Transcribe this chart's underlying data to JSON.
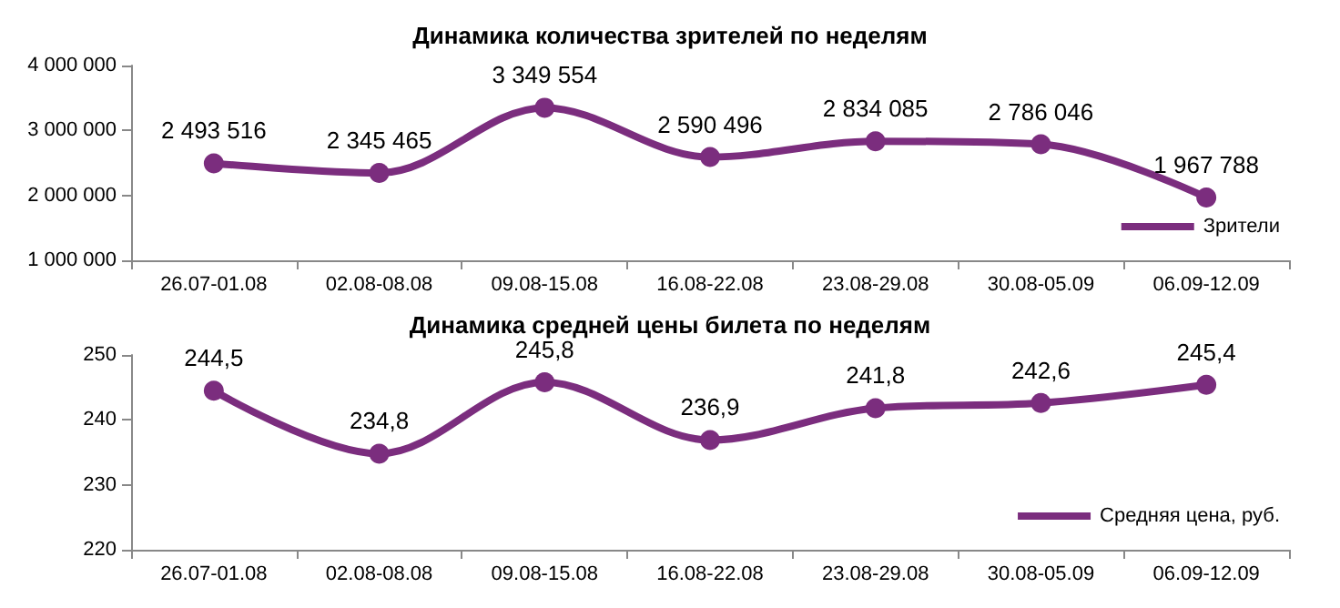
{
  "chart_data": [
    {
      "type": "line",
      "title": "Динамика количества зрителей по неделям",
      "categories": [
        "26.07-01.08",
        "02.08-08.08",
        "09.08-15.08",
        "16.08-22.08",
        "23.08-29.08",
        "30.08-05.09",
        "06.09-12.09"
      ],
      "series": [
        {
          "name": "Зрители",
          "color": "#7b2d7e",
          "values": [
            2493516,
            2345465,
            3349554,
            2590496,
            2834085,
            2786046,
            1967788
          ],
          "value_labels": [
            "2 493 516",
            "2 345 465",
            "3 349 554",
            "2 590 496",
            "2 834 085",
            "2 786 046",
            "1 967 788"
          ]
        }
      ],
      "ylim": [
        1000000,
        4000000
      ],
      "yticks": [
        {
          "value": 1000000,
          "label": "1 000 000"
        },
        {
          "value": 2000000,
          "label": "2 000 000"
        },
        {
          "value": 3000000,
          "label": "3 000 000"
        },
        {
          "value": 4000000,
          "label": "4 000 000"
        }
      ],
      "legend": "bottom right",
      "marker": "circle",
      "grid": false
    },
    {
      "type": "line",
      "title": "Динамика средней цены билета по неделям",
      "categories": [
        "26.07-01.08",
        "02.08-08.08",
        "09.08-15.08",
        "16.08-22.08",
        "23.08-29.08",
        "30.08-05.09",
        "06.09-12.09"
      ],
      "series": [
        {
          "name": "Средняя цена, руб.",
          "color": "#7b2d7e",
          "values": [
            244.5,
            234.8,
            245.8,
            236.9,
            241.8,
            242.6,
            245.4
          ],
          "value_labels": [
            "244,5",
            "234,8",
            "245,8",
            "236,9",
            "241,8",
            "242,6",
            "245,4"
          ]
        }
      ],
      "ylim": [
        220,
        250
      ],
      "yticks": [
        220,
        230,
        240,
        250
      ],
      "legend": "bottom right",
      "marker": "circle",
      "grid": false
    }
  ]
}
